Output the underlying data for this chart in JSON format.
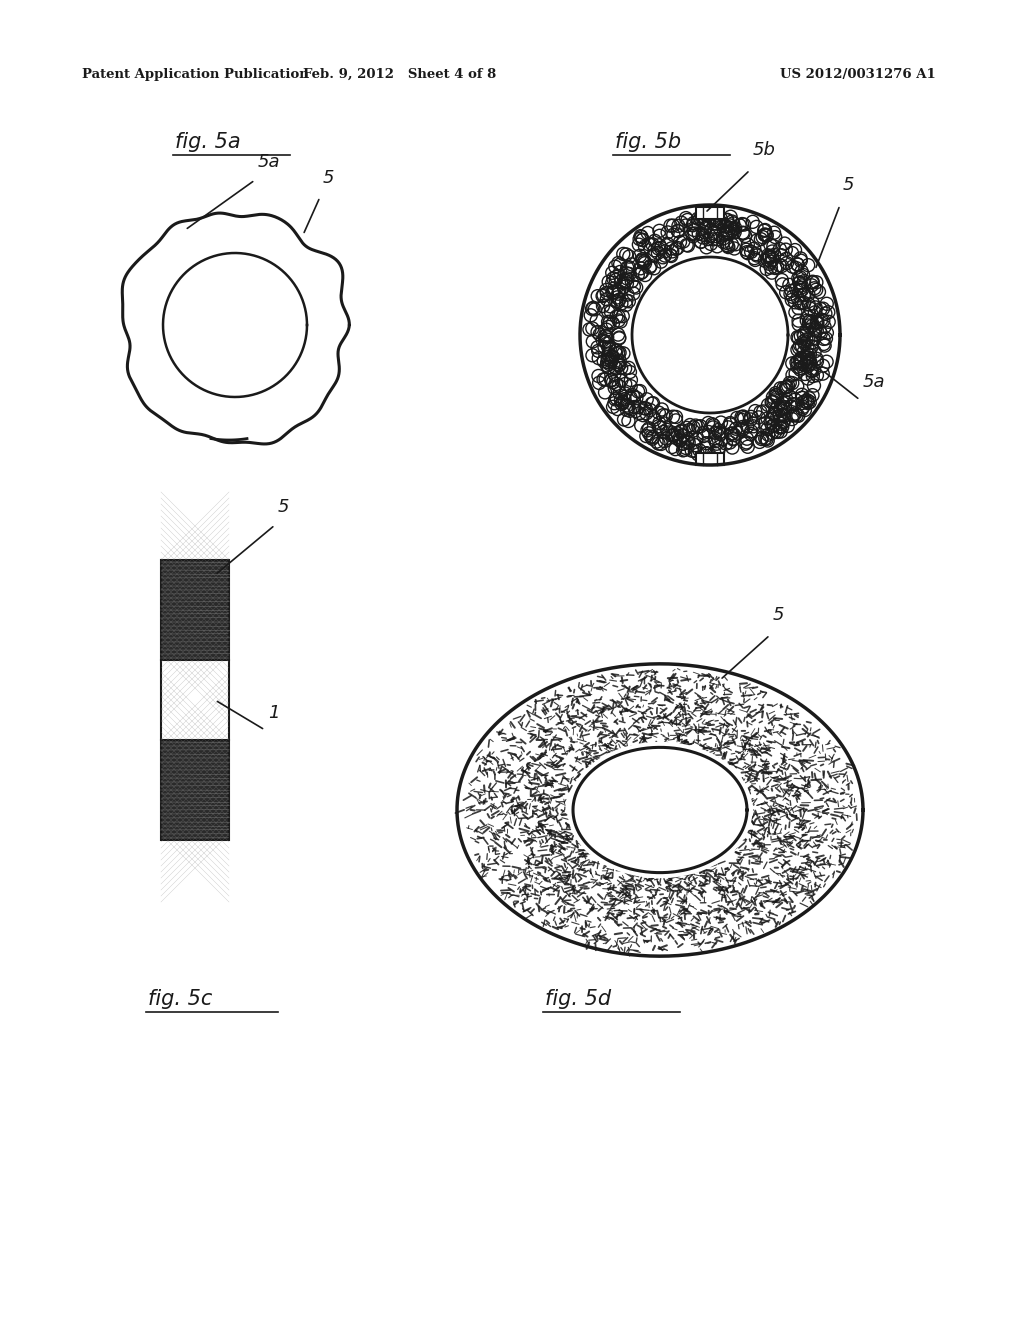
{
  "header_left": "Patent Application Publication",
  "header_center": "Feb. 9, 2012   Sheet 4 of 8",
  "header_right": "US 2012/0031276 A1",
  "fig5a_label": "fig. 5a",
  "fig5b_label": "fig. 5b",
  "fig5c_label": "fig. 5c",
  "fig5d_label": "fig. 5d",
  "bg_color": "#ffffff",
  "line_color": "#1a1a1a",
  "dark_fill": "#222222"
}
